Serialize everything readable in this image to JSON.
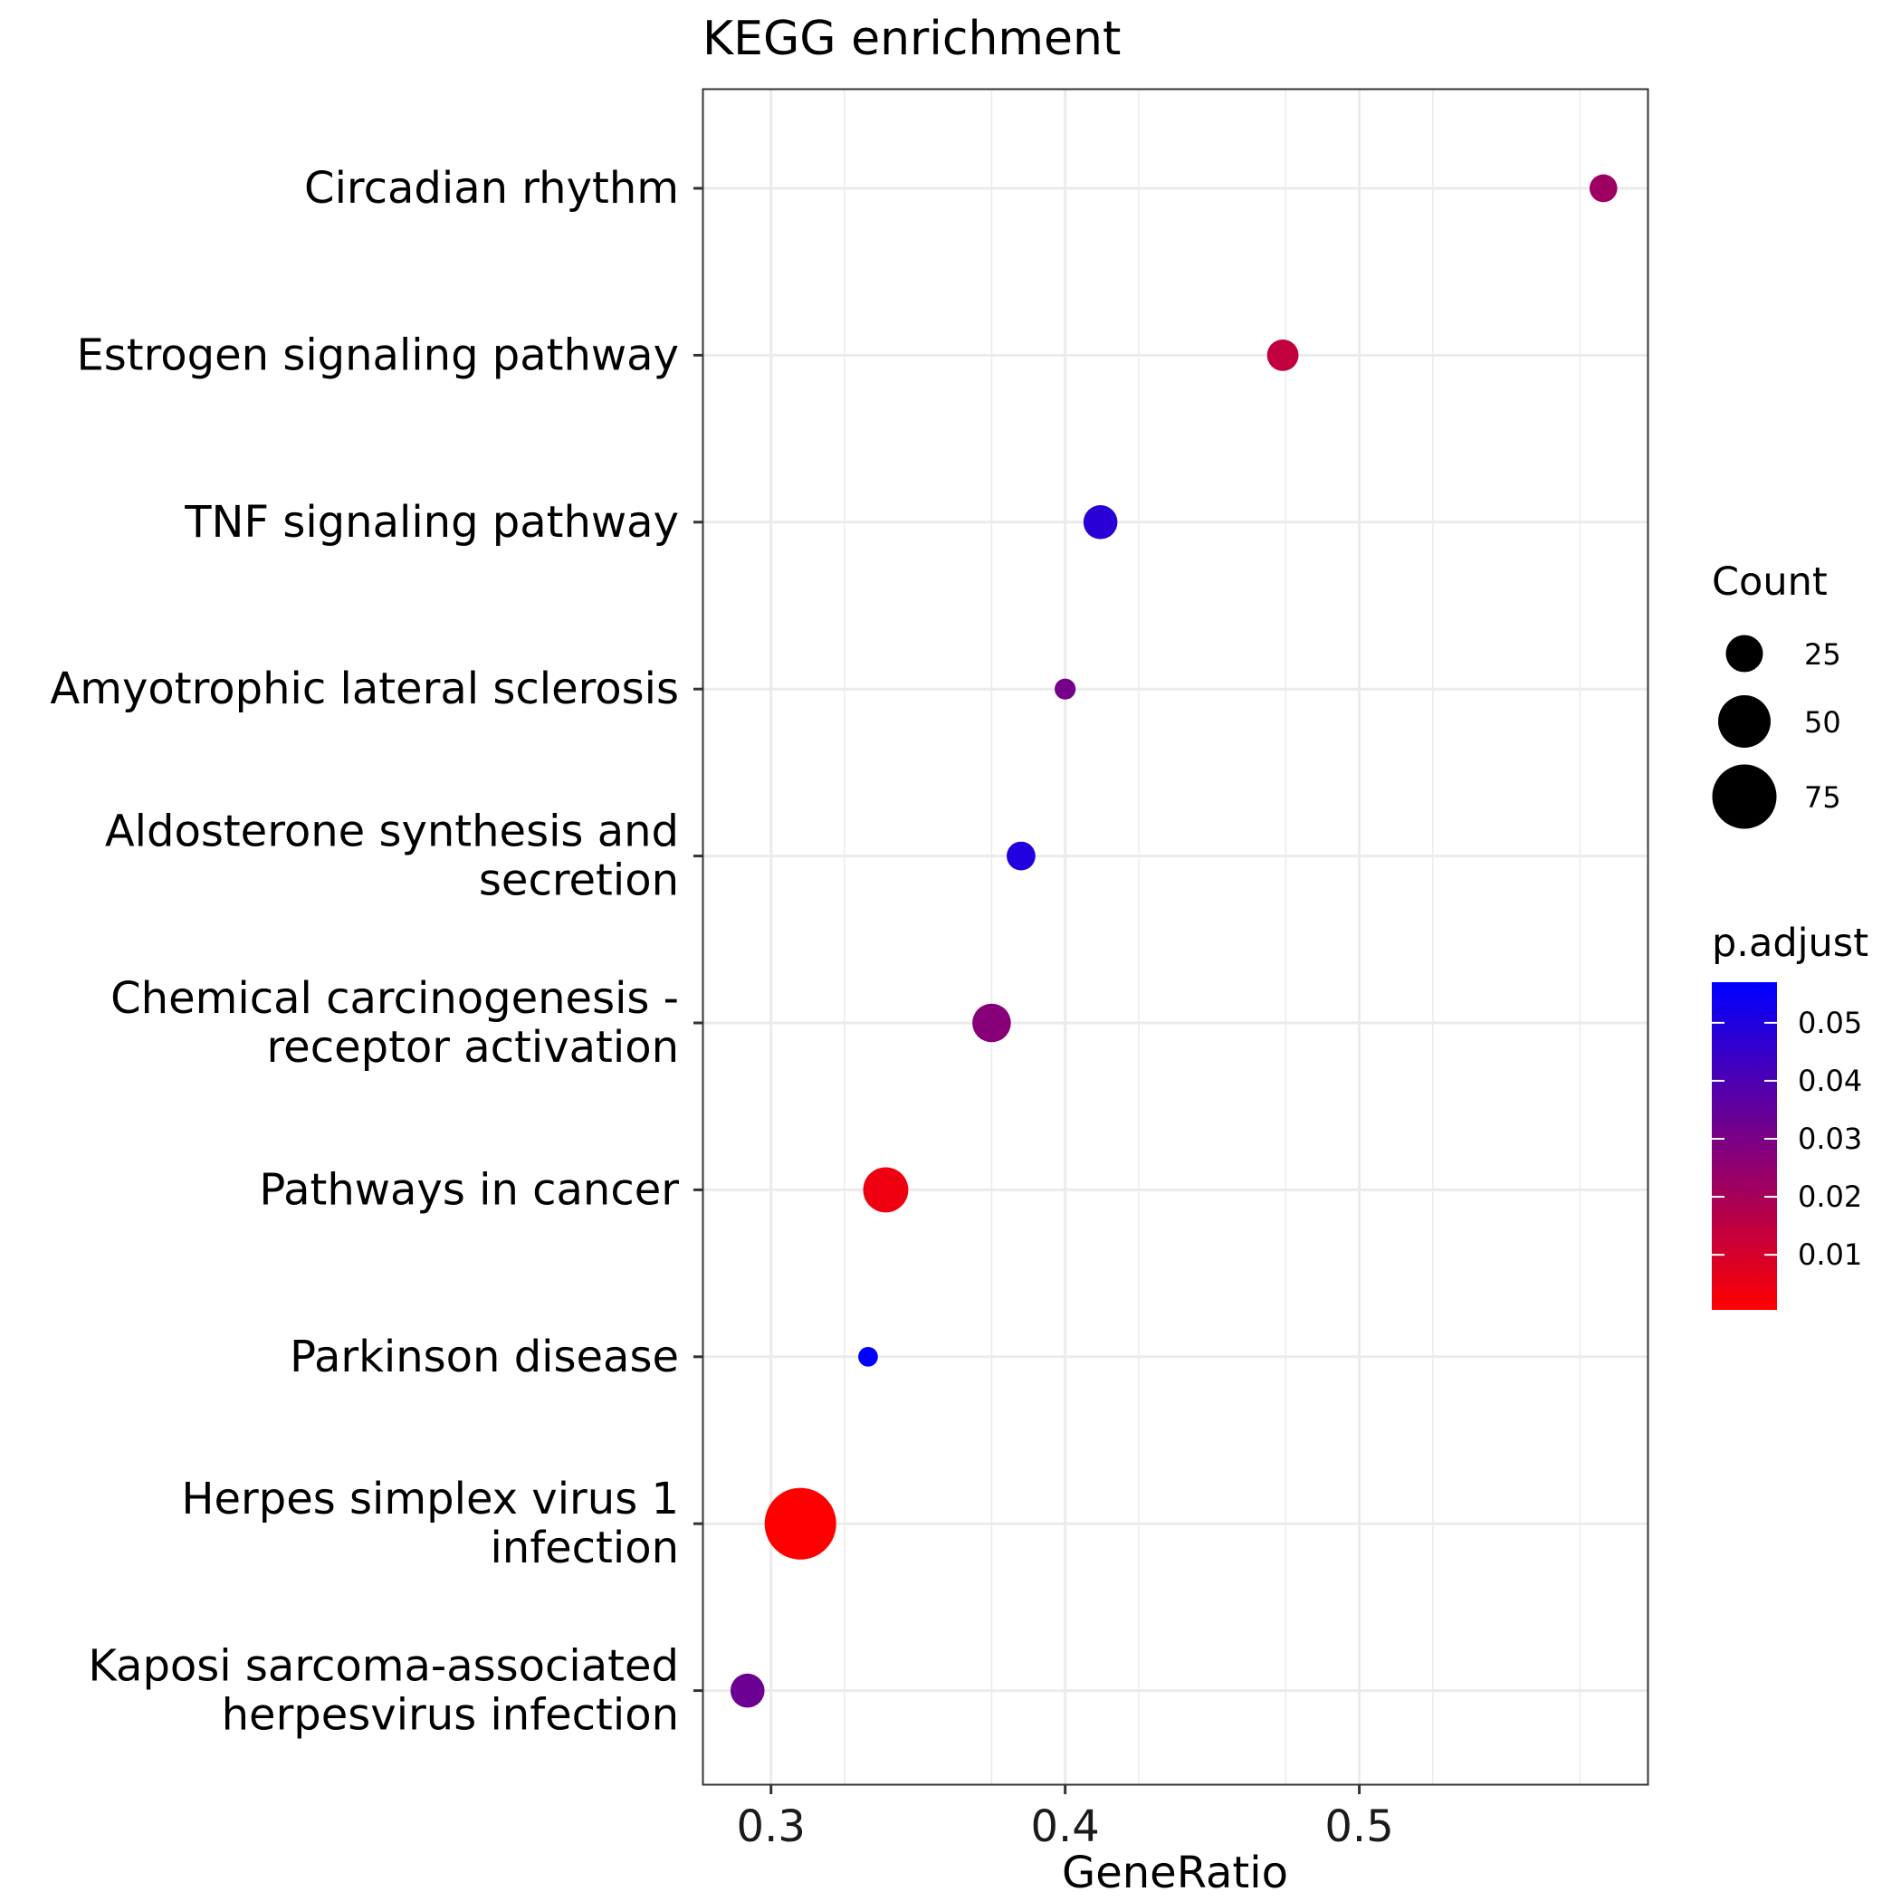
{
  "chart_data": {
    "type": "scatter",
    "title": "KEGG enrichment",
    "xlabel": "GeneRatio",
    "ylabel": "",
    "xlim": [
      0.277,
      0.598
    ],
    "x_ticks": [
      0.3,
      0.4,
      0.5
    ],
    "x_tick_labels": [
      "0.3",
      "0.4",
      "0.5"
    ],
    "grid": true,
    "categories": [
      [
        "Circadian rhythm"
      ],
      [
        "Estrogen signaling pathway"
      ],
      [
        "TNF signaling pathway"
      ],
      [
        "Amyotrophic lateral sclerosis"
      ],
      [
        "Aldosterone synthesis and",
        "secretion"
      ],
      [
        "Chemical carcinogenesis -",
        "receptor activation"
      ],
      [
        "Pathways in cancer"
      ],
      [
        "Parkinson disease"
      ],
      [
        "Herpes simplex virus 1",
        "infection"
      ],
      [
        "Kaposi sarcoma-associated",
        "herpesvirus infection"
      ]
    ],
    "points": [
      {
        "gene_ratio": 0.583,
        "count": 14,
        "p_adjust": 0.022
      },
      {
        "gene_ratio": 0.474,
        "count": 18,
        "p_adjust": 0.014
      },
      {
        "gene_ratio": 0.412,
        "count": 21,
        "p_adjust": 0.048
      },
      {
        "gene_ratio": 0.4,
        "count": 8,
        "p_adjust": 0.031
      },
      {
        "gene_ratio": 0.385,
        "count": 15,
        "p_adjust": 0.05
      },
      {
        "gene_ratio": 0.375,
        "count": 27,
        "p_adjust": 0.027
      },
      {
        "gene_ratio": 0.339,
        "count": 37,
        "p_adjust": 0.004
      },
      {
        "gene_ratio": 0.333,
        "count": 7,
        "p_adjust": 0.057
      },
      {
        "gene_ratio": 0.31,
        "count": 93,
        "p_adjust": 0.0005
      },
      {
        "gene_ratio": 0.292,
        "count": 21,
        "p_adjust": 0.033
      }
    ],
    "size_legend": {
      "title": "Count",
      "entries": [
        {
          "value": 25,
          "label": "25"
        },
        {
          "value": 50,
          "label": "50"
        },
        {
          "value": 75,
          "label": "75"
        }
      ]
    },
    "color_legend": {
      "title": "p.adjust",
      "range": [
        0.0005,
        0.057
      ],
      "low_color": "#ff0000",
      "high_color": "#0000ff",
      "ticks": [
        {
          "value": 0.01,
          "label": "0.01"
        },
        {
          "value": 0.02,
          "label": "0.02"
        },
        {
          "value": 0.03,
          "label": "0.03"
        },
        {
          "value": 0.04,
          "label": "0.04"
        },
        {
          "value": 0.05,
          "label": "0.05"
        }
      ]
    }
  }
}
